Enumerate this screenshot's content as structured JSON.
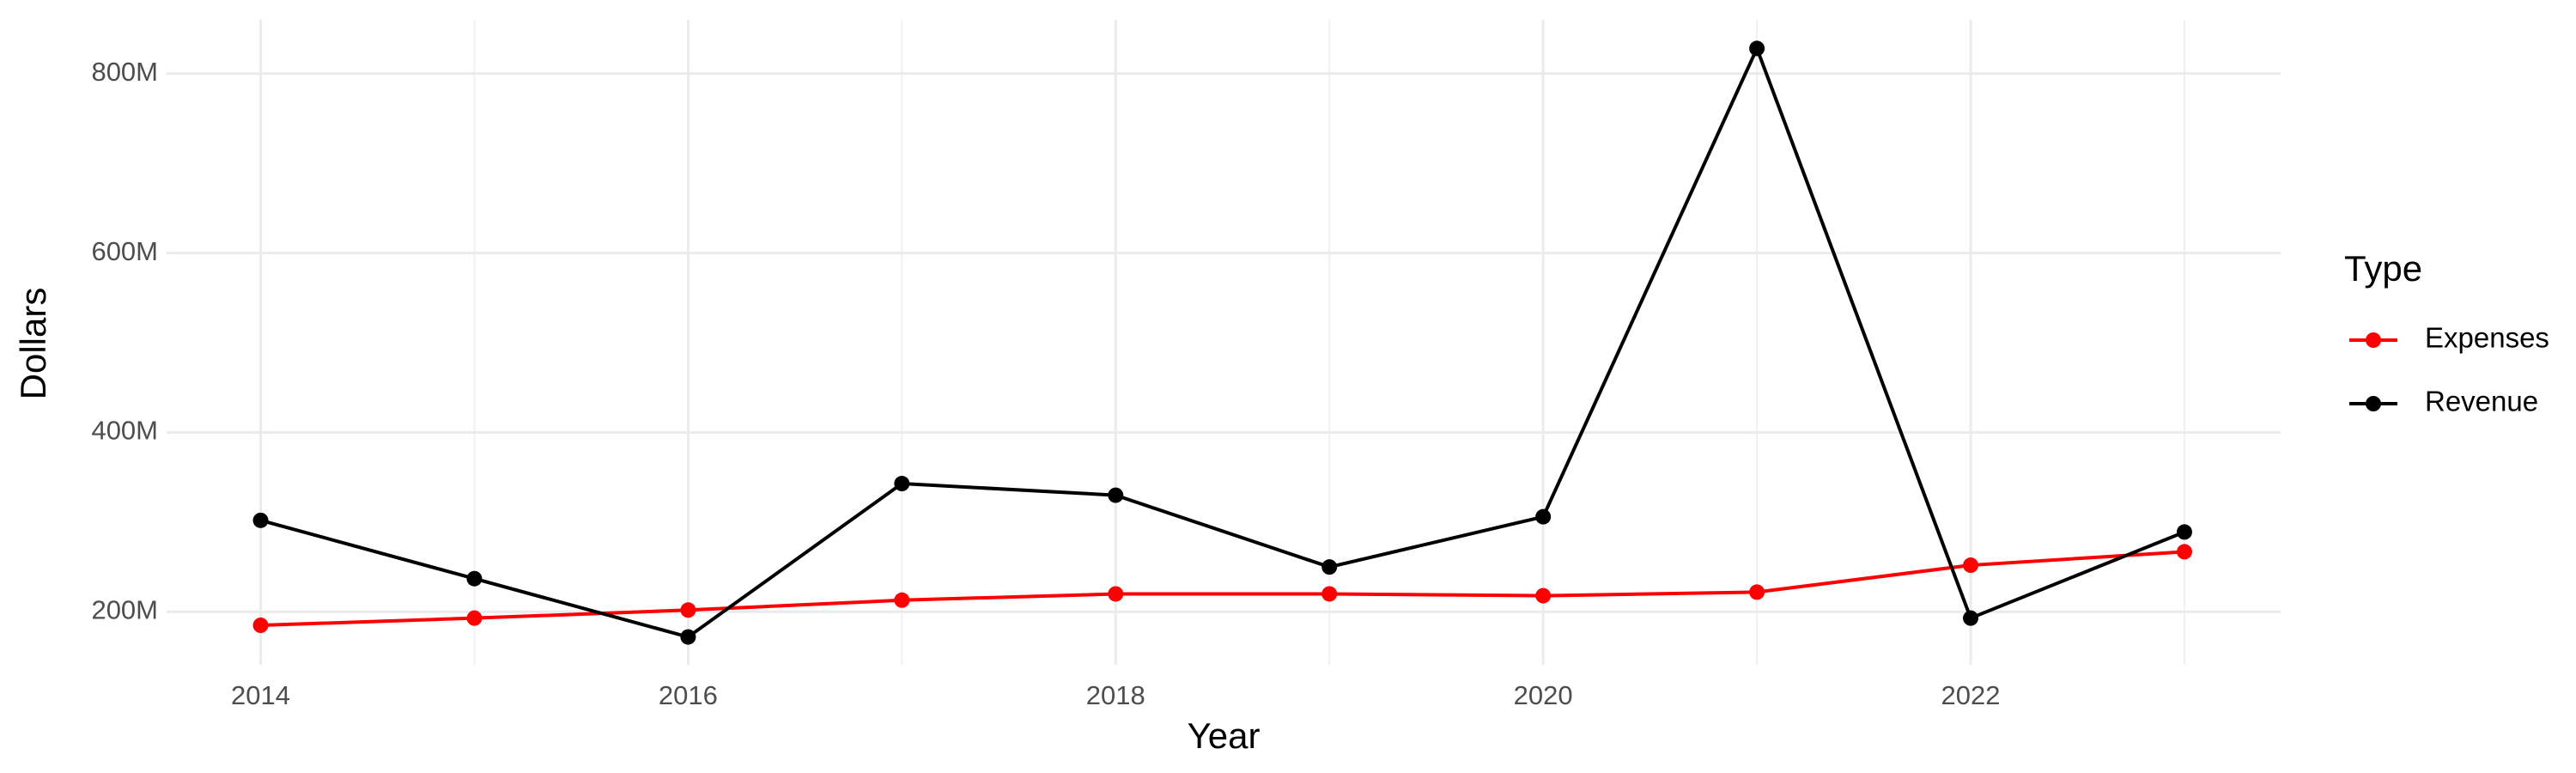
{
  "chart_data": {
    "type": "line",
    "x_label": "Year",
    "y_label": "Dollars",
    "legend_title": "Type",
    "x": [
      2014,
      2015,
      2016,
      2017,
      2018,
      2019,
      2020,
      2021,
      2022,
      2023
    ],
    "xlim": [
      2013.56,
      2023.45
    ],
    "xticks": [
      2014,
      2016,
      2018,
      2020,
      2022
    ],
    "ylim": [
      141000000,
      860000000
    ],
    "yticks": [
      {
        "value": 200000000,
        "label": "200M"
      },
      {
        "value": 400000000,
        "label": "400M"
      },
      {
        "value": 600000000,
        "label": "600M"
      },
      {
        "value": 800000000,
        "label": "800M"
      }
    ],
    "grid": true,
    "legend": "right",
    "series": [
      {
        "name": "Expenses",
        "color": "#ff0000",
        "values": [
          185000000,
          193000000,
          202000000,
          213000000,
          220000000,
          220000000,
          218000000,
          222000000,
          252000000,
          267000000
        ]
      },
      {
        "name": "Revenue",
        "color": "#000000",
        "values": [
          302000000,
          237000000,
          172000000,
          343000000,
          330000000,
          250000000,
          306000000,
          828000000,
          193000000,
          289000000
        ]
      }
    ]
  }
}
